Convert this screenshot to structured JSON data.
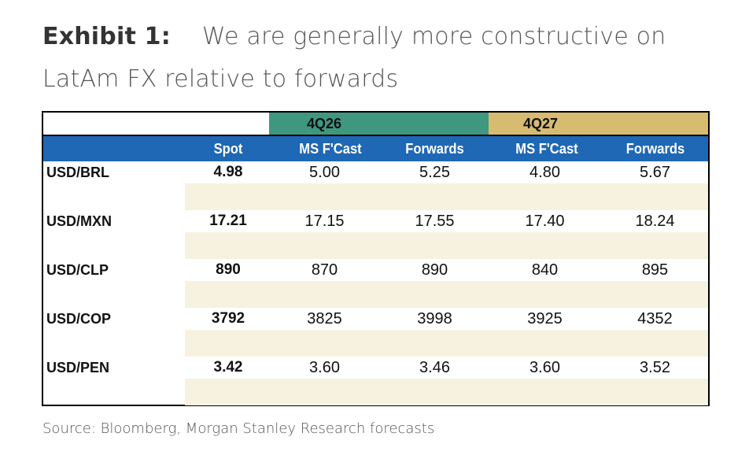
{
  "title": {
    "label": "Exhibit 1:",
    "text": "We are generally more constructive on LatAm FX relative to forwards"
  },
  "groups": [
    {
      "label": "4Q26",
      "color": "#3f9780"
    },
    {
      "label": "4Q27",
      "color": "#d6bb71"
    }
  ],
  "header": [
    "",
    "Spot",
    "MS F'Cast",
    "Forwards",
    "MS F'Cast",
    "Forwards"
  ],
  "header_color": "#1f68b5",
  "rows": [
    {
      "pair": "USD/BRL",
      "spot": "4.98",
      "q26_ms": "5.00",
      "q26_fwd": "5.25",
      "q27_ms": "4.80",
      "q27_fwd": "5.67"
    },
    {
      "pair": "USD/MXN",
      "spot": "17.21",
      "q26_ms": "17.15",
      "q26_fwd": "17.55",
      "q27_ms": "17.40",
      "q27_fwd": "18.24"
    },
    {
      "pair": "USD/CLP",
      "spot": "890",
      "q26_ms": "870",
      "q26_fwd": "890",
      "q27_ms": "840",
      "q27_fwd": "895"
    },
    {
      "pair": "USD/COP",
      "spot": "3792",
      "q26_ms": "3825",
      "q26_fwd": "3998",
      "q27_ms": "3925",
      "q27_fwd": "4352"
    },
    {
      "pair": "USD/PEN",
      "spot": "3.42",
      "q26_ms": "3.60",
      "q26_fwd": "3.46",
      "q27_ms": "3.60",
      "q27_fwd": "3.52"
    }
  ],
  "source": "Source: Bloomberg, Morgan Stanley Research forecasts"
}
